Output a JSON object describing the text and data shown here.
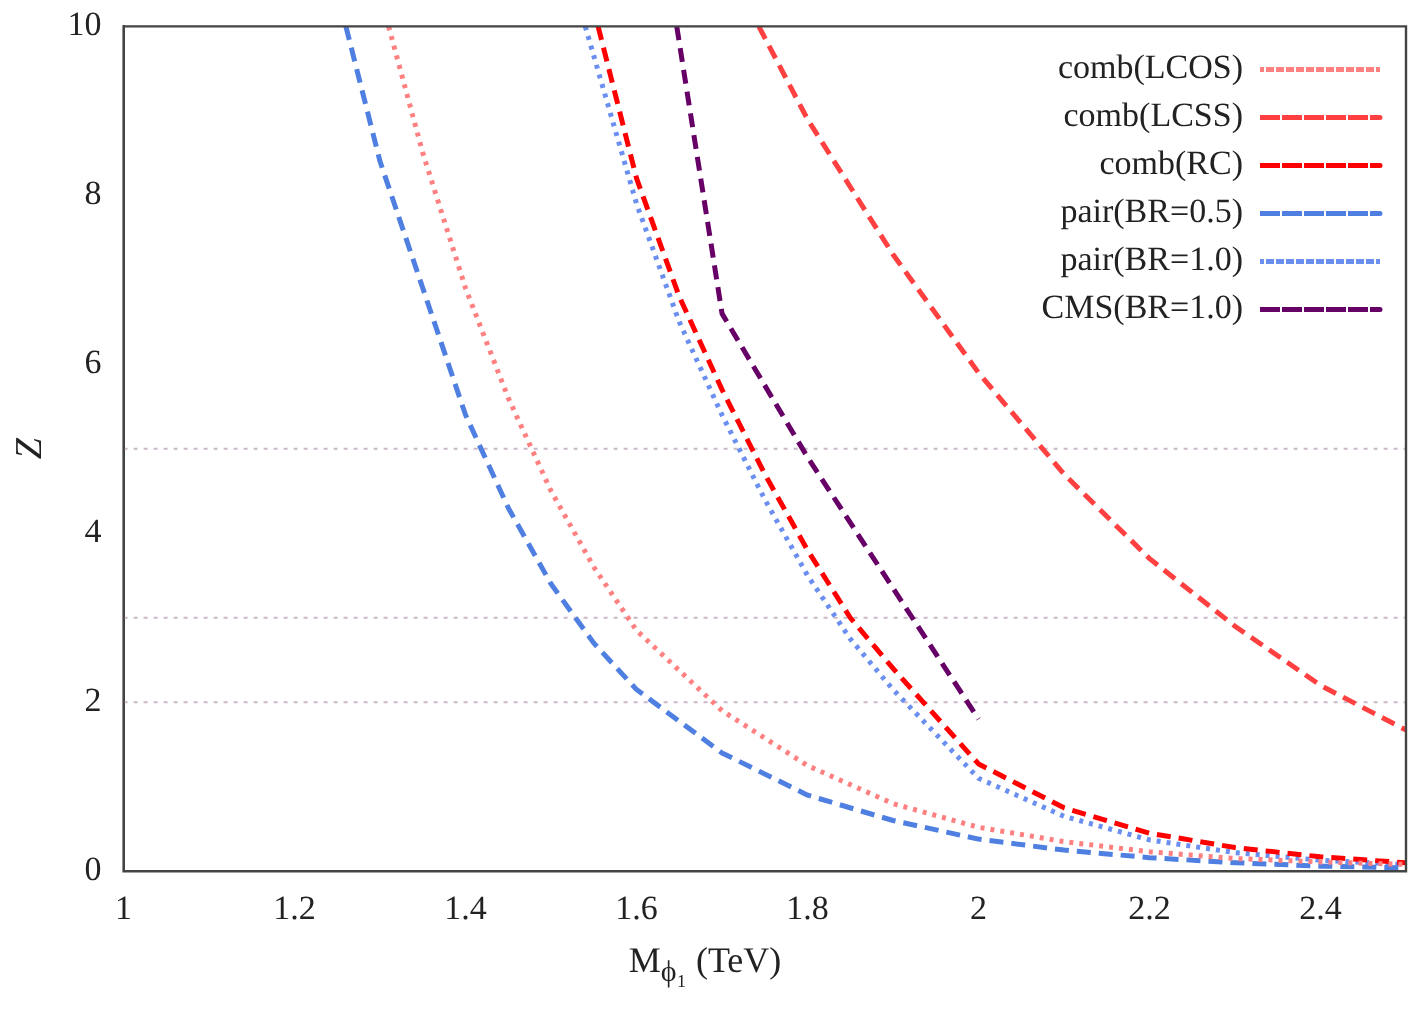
{
  "chart_data": {
    "type": "line",
    "xlabel": "M$_{ϕ₁}$ (TeV)",
    "ylabel": "Z",
    "xlim": [
      1,
      2.5
    ],
    "xticks": [
      1,
      1.2,
      1.4,
      1.6,
      1.8,
      2,
      2.2,
      2.4
    ],
    "ylim": [
      0,
      10
    ],
    "yticks": [
      0,
      2,
      4,
      6,
      8,
      10
    ],
    "grid": false,
    "legend": "top right",
    "marker": "none",
    "ref_lines": [
      {
        "axis": "y",
        "value": 2,
        "color": "#c8b8c8",
        "line_style": "dotted"
      },
      {
        "axis": "y",
        "value": 3,
        "color": "#c8b8c8",
        "line_style": "dotted"
      },
      {
        "axis": "y",
        "value": 5,
        "color": "#c8b8c8",
        "line_style": "dotted"
      }
    ],
    "series": [
      {
        "name": "comb(LCOS)",
        "color": "#ff8080",
        "line_style": "dotted",
        "x": [
          1.31,
          1.35,
          1.4,
          1.45,
          1.5,
          1.55,
          1.6,
          1.7,
          1.8,
          1.9,
          2.0,
          2.1,
          2.2,
          2.3,
          2.4,
          2.5
        ],
        "values": [
          10,
          8.5,
          6.9,
          5.6,
          4.5,
          3.6,
          2.85,
          1.9,
          1.25,
          0.8,
          0.52,
          0.35,
          0.23,
          0.15,
          0.11,
          0.08
        ]
      },
      {
        "name": "comb(LCSS)",
        "color": "#ff4040",
        "line_style": "dashed",
        "x": [
          1.743,
          1.8,
          1.9,
          2.0,
          2.1,
          2.2,
          2.3,
          2.4,
          2.5
        ],
        "values": [
          10,
          8.9,
          7.3,
          5.9,
          4.7,
          3.7,
          2.9,
          2.2,
          1.67
        ]
      },
      {
        "name": "comb(RC)",
        "color": "#ff0000",
        "line_style": "dashed",
        "x": [
          1.555,
          1.6,
          1.65,
          1.7,
          1.75,
          1.8,
          1.85,
          1.9,
          2.0,
          2.1,
          2.2,
          2.3,
          2.4,
          2.5
        ],
        "values": [
          10,
          8.2,
          6.8,
          5.7,
          4.7,
          3.8,
          3.0,
          2.4,
          1.27,
          0.75,
          0.45,
          0.28,
          0.17,
          0.1
        ]
      },
      {
        "name": "pair(BR=0.5)",
        "color": "#4f7fe0",
        "line_style": "dashed",
        "x": [
          1.26,
          1.3,
          1.35,
          1.4,
          1.45,
          1.5,
          1.55,
          1.6,
          1.7,
          1.8,
          1.9,
          2.0,
          2.1,
          2.2,
          2.3,
          2.4,
          2.5
        ],
        "values": [
          10,
          8.4,
          6.9,
          5.4,
          4.3,
          3.4,
          2.7,
          2.15,
          1.4,
          0.9,
          0.6,
          0.38,
          0.25,
          0.16,
          0.1,
          0.06,
          0.04
        ]
      },
      {
        "name": "pair(BR=1.0)",
        "color": "#6a8ff0",
        "line_style": "dotted",
        "x": [
          1.54,
          1.6,
          1.65,
          1.7,
          1.75,
          1.8,
          1.85,
          1.9,
          2.0,
          2.1,
          2.2,
          2.3,
          2.4,
          2.5
        ],
        "values": [
          10,
          7.9,
          6.5,
          5.4,
          4.4,
          3.5,
          2.75,
          2.15,
          1.1,
          0.65,
          0.37,
          0.22,
          0.13,
          0.08
        ]
      },
      {
        "name": "CMS(BR=1.0)",
        "color": "#660066",
        "line_style": "dashed",
        "x": [
          1.647,
          1.7,
          1.8,
          1.9,
          2.0
        ],
        "values": [
          10,
          6.6,
          4.9,
          3.35,
          1.8
        ]
      }
    ]
  }
}
